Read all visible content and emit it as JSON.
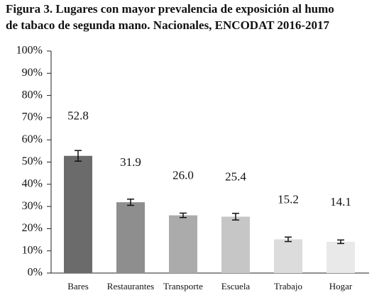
{
  "chart_data": {
    "type": "bar",
    "title": "Figura 3.  Lugares con mayor prevalencia de exposición al humo",
    "subtitle": "de tabaco de segunda mano. Nacionales, ENCODAT 2016-2017",
    "categories": [
      "Bares",
      "Restaurantes",
      "Transporte",
      "Escuela",
      "Trabajo",
      "Hogar"
    ],
    "values": [
      52.8,
      31.9,
      26.0,
      25.4,
      15.2,
      14.1
    ],
    "value_labels": [
      "52.8",
      "31.9",
      "26.0",
      "25.4",
      "15.2",
      "14.1"
    ],
    "errors": [
      2.4,
      1.4,
      1.0,
      1.5,
      1.0,
      0.8
    ],
    "colors": [
      "#6b6b6b",
      "#8e8e8e",
      "#ababab",
      "#c6c6c6",
      "#dcdcdc",
      "#e9e9e9"
    ],
    "ylim": [
      0,
      100
    ],
    "yticks": [
      {
        "value": 0,
        "label": "0%"
      },
      {
        "value": 10,
        "label": "10%"
      },
      {
        "value": 20,
        "label": "20%"
      },
      {
        "value": 30,
        "label": "30%"
      },
      {
        "value": 40,
        "label": "40%"
      },
      {
        "value": 50,
        "label": "50%"
      },
      {
        "value": 60,
        "label": "60%"
      },
      {
        "value": 70,
        "label": "70%"
      },
      {
        "value": 80,
        "label": "80%"
      },
      {
        "value": 90,
        "label": "90%"
      },
      {
        "value": 100,
        "label": "100%"
      }
    ]
  }
}
